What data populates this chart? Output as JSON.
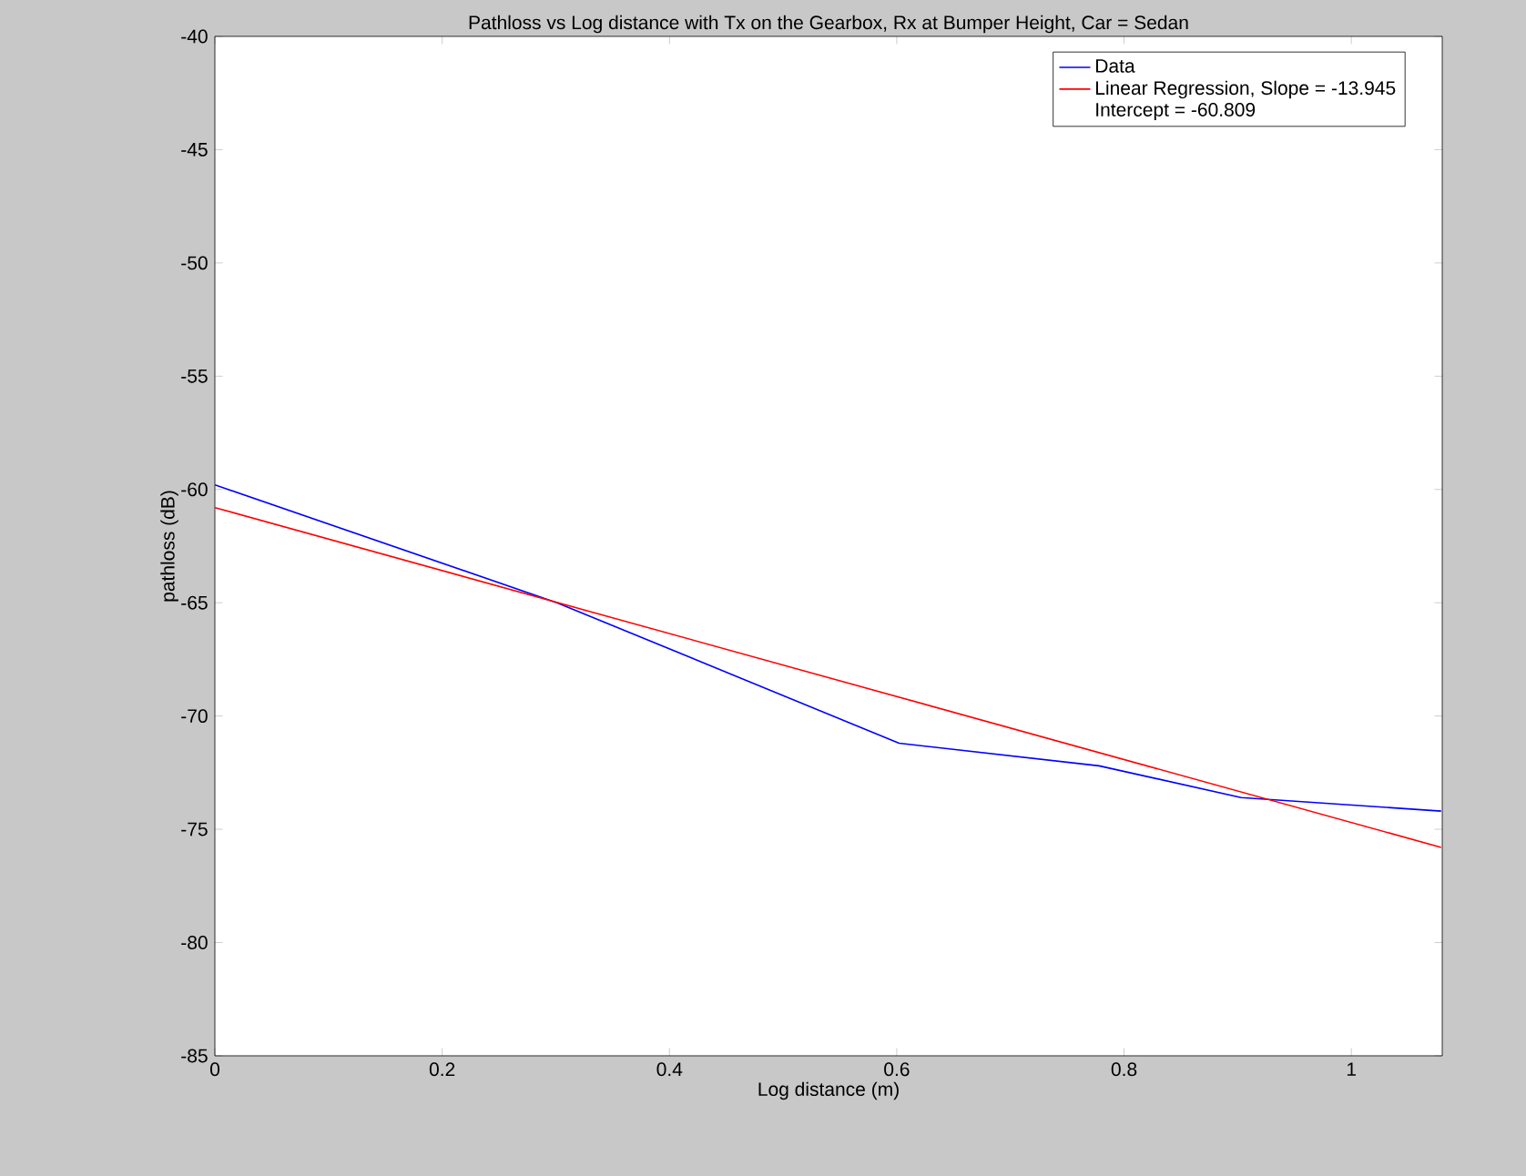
{
  "chart_data": {
    "type": "line",
    "title": "Pathloss vs Log distance with Tx on the Gearbox, Rx at Bumper Height, Car = Sedan",
    "xlabel": "Log distance (m)",
    "ylabel": "pathloss (dB)",
    "series": [
      {
        "name": "Data",
        "color": "#0000ff",
        "x": [
          0,
          0.301,
          0.602,
          0.778,
          0.903,
          1.079
        ],
        "values": [
          -59.8,
          -65.0,
          -71.2,
          -72.2,
          -73.6,
          -74.2
        ]
      },
      {
        "name": "Linear Regression, Slope = -13.945",
        "color": "#ff0000",
        "x": [
          0,
          1.079
        ],
        "values": [
          -60.8,
          -75.8
        ]
      }
    ],
    "annotations": [
      "Intercept = -60.809"
    ],
    "xlim": [
      0,
      1.08
    ],
    "ylim": [
      -85,
      -40
    ],
    "xticks": [
      0,
      0.2,
      0.4,
      0.6,
      0.8,
      1
    ],
    "yticks": [
      -85,
      -80,
      -75,
      -70,
      -65,
      -60,
      -55,
      -50,
      -45,
      -40
    ],
    "grid": false,
    "legend": "top right",
    "marker": "none",
    "line_style": "solid"
  }
}
